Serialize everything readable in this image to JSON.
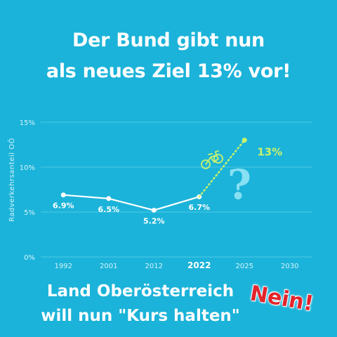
{
  "headline": {
    "line1": "Der Bund gibt nun",
    "line2": "als neues Ziel 13% vor!"
  },
  "footer": {
    "line1": "Land Oberösterreich",
    "line2": "will nun \"Kurs halten\"",
    "stamp": "Nein!"
  },
  "colors": {
    "background": "#1bb3d9",
    "line": "#ffffff",
    "target": "#c9f26b",
    "question": "#8ee3f5",
    "grid": "#4fc8e6",
    "stamp": "#e3242b"
  },
  "icons": [
    "bicycle-icon",
    "question-mark-icon"
  ],
  "chart_data": {
    "type": "line",
    "title": "",
    "xlabel": "",
    "ylabel": "Radverkehrsanteil OÖ",
    "ylim": [
      0,
      15
    ],
    "grid": true,
    "yticks": [
      {
        "value": 0,
        "label": "0%"
      },
      {
        "value": 5,
        "label": "5%"
      },
      {
        "value": 10,
        "label": "10%"
      },
      {
        "value": 15,
        "label": "15%"
      }
    ],
    "xticks": [
      {
        "value": 1992,
        "label": "1992",
        "bold": false
      },
      {
        "value": 2001,
        "label": "2001",
        "bold": false
      },
      {
        "value": 2012,
        "label": "2012",
        "bold": false
      },
      {
        "value": 2022,
        "label": "2022",
        "bold": true
      },
      {
        "value": 2025,
        "label": "2025",
        "bold": false
      },
      {
        "value": 2030,
        "label": "2030",
        "bold": false
      }
    ],
    "series": [
      {
        "values": [
          {
            "x": 1992,
            "y": 6.9,
            "label": "6.9%"
          },
          {
            "x": 2001,
            "y": 6.5,
            "label": "6.5%"
          },
          {
            "x": 2012,
            "y": 5.2,
            "label": "5.2%"
          },
          {
            "x": 2022,
            "y": 6.7,
            "label": "6.7%"
          }
        ]
      }
    ],
    "target": {
      "from": {
        "x": 2022,
        "y": 6.7
      },
      "to": {
        "x": 2025,
        "y": 13
      },
      "label": "13%"
    }
  }
}
